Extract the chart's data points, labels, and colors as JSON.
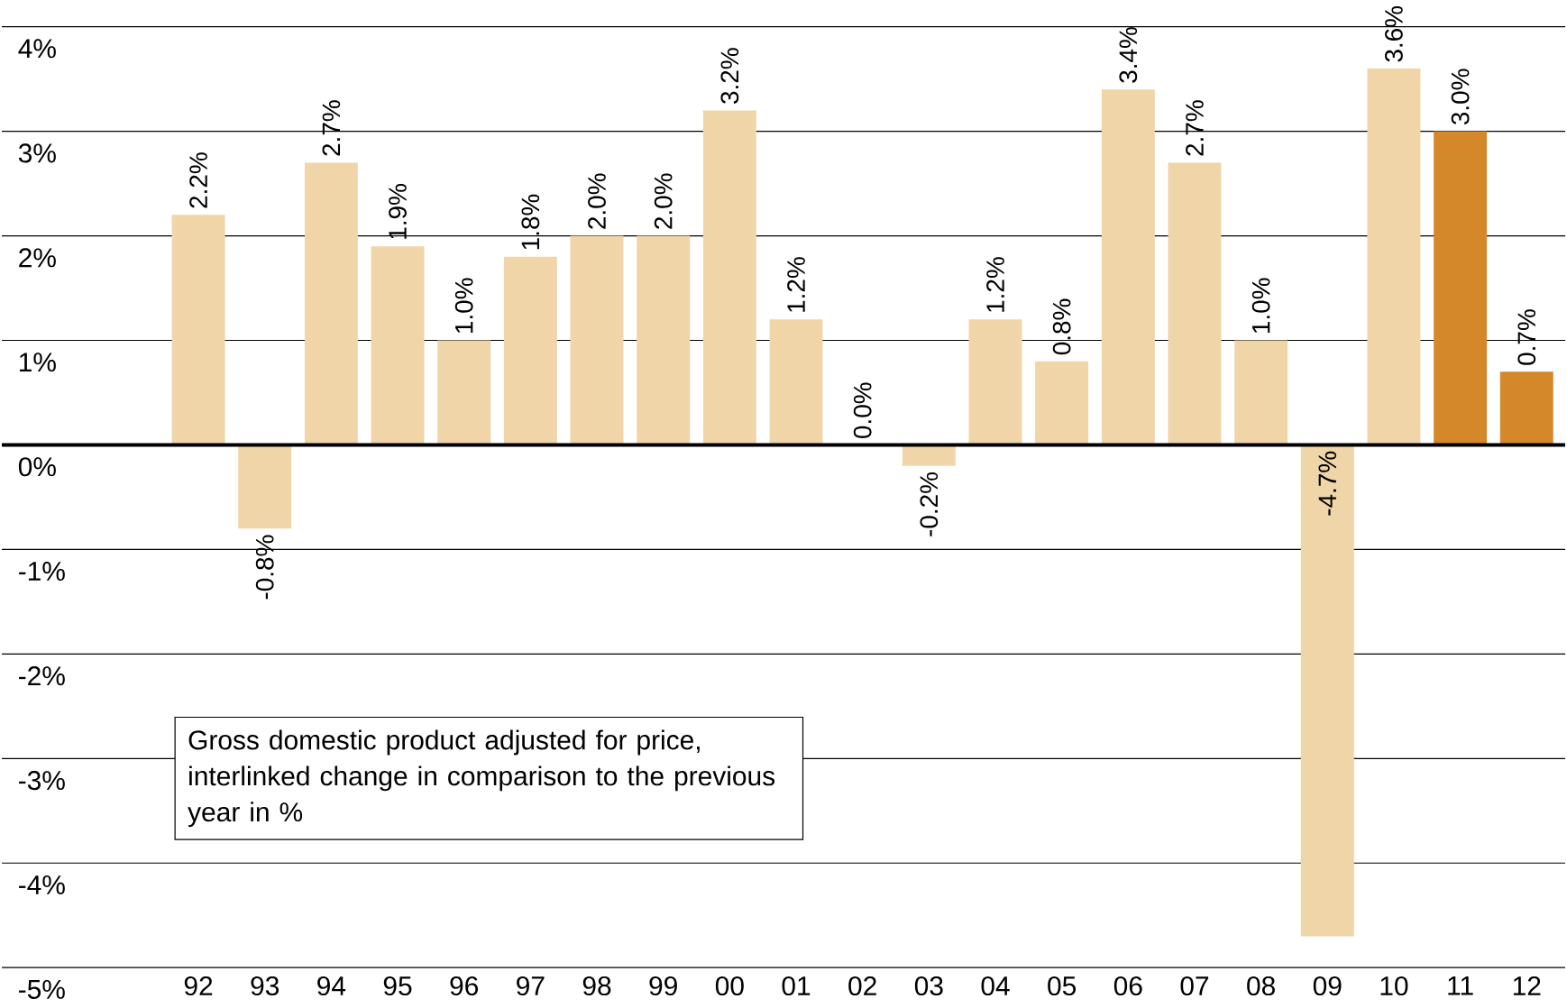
{
  "chart_data": {
    "type": "bar",
    "categories": [
      "92",
      "93",
      "94",
      "95",
      "96",
      "97",
      "98",
      "99",
      "00",
      "01",
      "02",
      "03",
      "04",
      "05",
      "06",
      "07",
      "08",
      "09",
      "10",
      "11",
      "12"
    ],
    "values": [
      2.2,
      -0.8,
      2.7,
      1.9,
      1.0,
      1.8,
      2.0,
      2.0,
      3.2,
      1.2,
      0.0,
      -0.2,
      1.2,
      0.8,
      3.4,
      2.7,
      1.0,
      -4.7,
      3.6,
      3.0,
      0.7
    ],
    "value_labels": [
      "2.2%",
      "-0.8%",
      "2.7%",
      "1.9%",
      "1.0%",
      "1.8%",
      "2.0%",
      "2.0%",
      "3.2%",
      "1.2%",
      "0.0%",
      "-0.2%",
      "1.2%",
      "0.8%",
      "3.4%",
      "2.7%",
      "1.0%",
      "-4.7%",
      "3.6%",
      "3.0%",
      "0.7%"
    ],
    "colors": [
      "#f0d5a8",
      "#f0d5a8",
      "#f0d5a8",
      "#f0d5a8",
      "#f0d5a8",
      "#f0d5a8",
      "#f0d5a8",
      "#f0d5a8",
      "#f0d5a8",
      "#f0d5a8",
      "#f0d5a8",
      "#f0d5a8",
      "#f0d5a8",
      "#f0d5a8",
      "#f0d5a8",
      "#f0d5a8",
      "#f0d5a8",
      "#f0d5a8",
      "#f0d5a8",
      "#d4882a",
      "#d4882a"
    ],
    "ylim": [
      -5,
      4
    ],
    "yticks": [
      {
        "value": -5,
        "label": "-5%"
      },
      {
        "value": -4,
        "label": "-4%"
      },
      {
        "value": -3,
        "label": "-3%"
      },
      {
        "value": -2,
        "label": "-2%"
      },
      {
        "value": -1,
        "label": "-1%"
      },
      {
        "value": 0,
        "label": "0%"
      },
      {
        "value": 1,
        "label": "1%"
      },
      {
        "value": 2,
        "label": "2%"
      },
      {
        "value": 3,
        "label": "3%"
      },
      {
        "value": 4,
        "label": "4%"
      }
    ],
    "grid": "y",
    "ref_lines": [
      {
        "axis": "y",
        "value": 0,
        "color": "#000000"
      }
    ],
    "annotations": [
      "Gross domestic product adjusted for price, interlinked change in comparison to the previous year in %"
    ]
  }
}
